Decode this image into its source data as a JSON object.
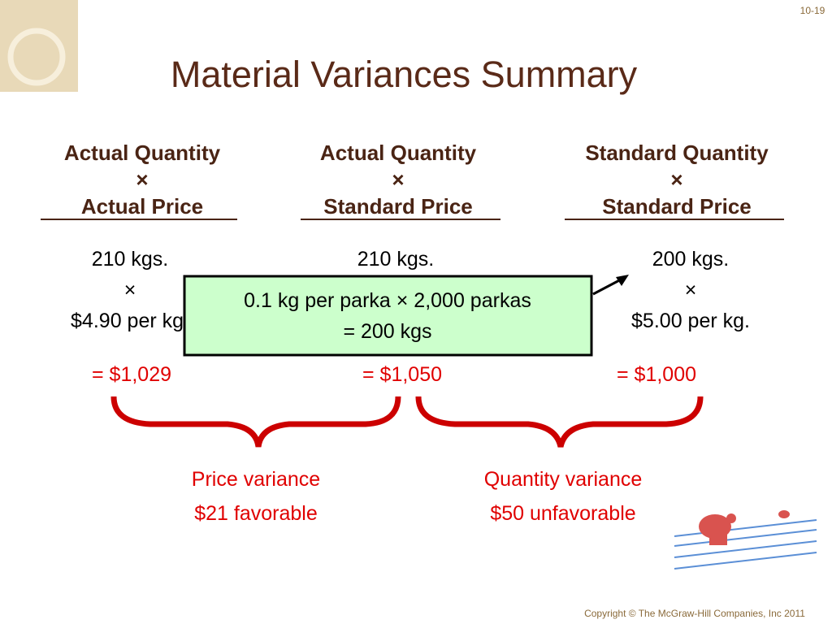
{
  "slide_number": "10-19",
  "title": "Material Variances Summary",
  "columns": [
    {
      "header": [
        "Actual Quantity",
        "×",
        "Actual Price"
      ],
      "lines": [
        "210 kgs.",
        "×",
        "$4.90 per kg."
      ],
      "total": "= $1,029"
    },
    {
      "header": [
        "Actual Quantity",
        "×",
        "Standard Price"
      ],
      "lines": [
        "210 kgs."
      ],
      "total": "= $1,050"
    },
    {
      "header": [
        "Standard Quantity",
        "×",
        "Standard Price"
      ],
      "lines": [
        "200 kgs.",
        "×",
        "$5.00 per kg."
      ],
      "total": "= $1,000"
    }
  ],
  "callout": [
    "0.1 kg per parka × 2,000 parkas",
    "= 200 kgs"
  ],
  "variances": [
    {
      "name": "Price variance",
      "amount": "$21 favorable"
    },
    {
      "name": "Quantity variance",
      "amount": "$50 unfavorable"
    }
  ],
  "copyright": "Copyright © The McGraw-Hill Companies, Inc 2011"
}
